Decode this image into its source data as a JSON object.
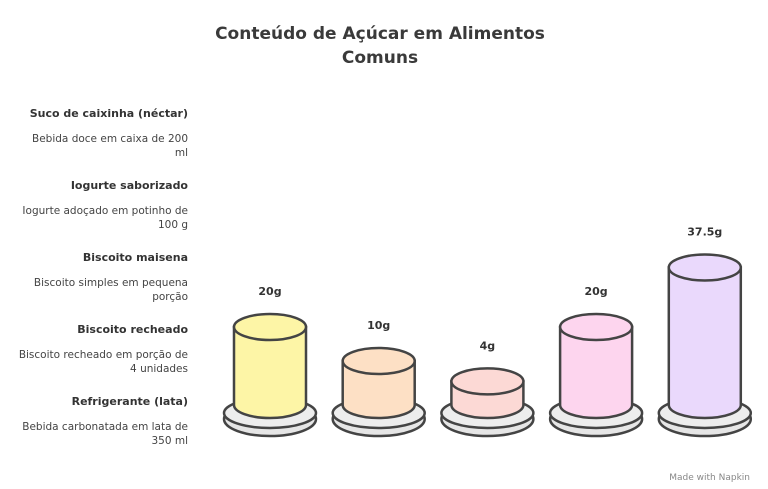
{
  "chart_data": {
    "type": "cylinder",
    "title": "Conteúdo de Açúcar em Alimentos Comuns",
    "categories": [
      "Suco de caixinha (néctar)",
      "Iogurte saborizado",
      "Biscoito maisena",
      "Biscoito recheado",
      "Refrigerante (lata)"
    ],
    "descriptions": [
      "Bebida doce em caixa de 200 ml",
      "Iogurte adoçado em potinho de 100 g",
      "Biscoito simples em pequena porção",
      "Biscoito recheado em porção de 4 unidades",
      "Bebida carbonatada em lata de 350 ml"
    ],
    "values": [
      20,
      10,
      4,
      20,
      37.5
    ],
    "value_labels": [
      "20g",
      "10g",
      "4g",
      "20g",
      "37.5g"
    ],
    "colors": [
      "#fdf5a6",
      "#fde0c5",
      "#fcd9d5",
      "#fdd5ee",
      "#ead9fc"
    ]
  },
  "footer": "Made with Napkin"
}
